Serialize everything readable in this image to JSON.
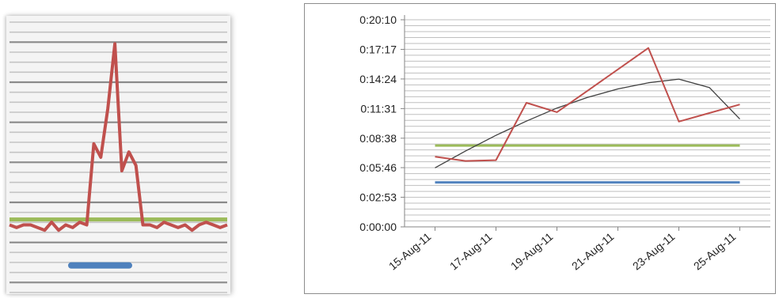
{
  "colors": {
    "actual": "#c0504d",
    "trend": "#404040",
    "upper_limit": "#9bbb59",
    "lower_limit": "#4f81bd",
    "grid": "#bfbfbf"
  },
  "chart_data": [
    {
      "type": "line",
      "title": "",
      "xlabel": "",
      "ylabel": "",
      "grid": true,
      "legend": "none",
      "series": [
        {
          "color": "#c0504d",
          "values": [
            0.25,
            0.24,
            0.25,
            0.25,
            0.24,
            0.23,
            0.26,
            0.23,
            0.25,
            0.24,
            0.26,
            0.25,
            0.55,
            0.5,
            0.68,
            0.92,
            0.45,
            0.52,
            0.47,
            0.25,
            0.25,
            0.24,
            0.26,
            0.25,
            0.24,
            0.25,
            0.23,
            0.25,
            0.26,
            0.25,
            0.24,
            0.25
          ]
        },
        {
          "color": "#9bbb59",
          "values": [
            0.27,
            0.27
          ]
        },
        {
          "color": "#4f81bd",
          "values": [
            0.1,
            0.1
          ]
        }
      ]
    },
    {
      "type": "line",
      "title": "",
      "xlabel": "",
      "ylabel": "",
      "grid": true,
      "legend": "none",
      "y_ticks": [
        "0:00:00",
        "0:02:53",
        "0:05:46",
        "0:08:38",
        "0:11:31",
        "0:14:24",
        "0:17:17",
        "0:20:10"
      ],
      "ylim": [
        "0:00:00",
        "0:20:10"
      ],
      "x_ticks": [
        "15-Aug-11",
        "17-Aug-11",
        "19-Aug-11",
        "21-Aug-11",
        "23-Aug-11",
        "25-Aug-11"
      ],
      "xlim": [
        "14-Aug-11",
        "26-Aug-11"
      ],
      "series": [
        {
          "color": "#c0504d",
          "x": [
            "15-Aug-11",
            "16-Aug-11",
            "17-Aug-11",
            "18-Aug-11",
            "19-Aug-11",
            "20-Aug-11",
            "21-Aug-11",
            "22-Aug-11",
            "23-Aug-11",
            "24-Aug-11",
            "25-Aug-11"
          ],
          "y": [
            "0:06:50",
            "0:06:25",
            "0:06:30",
            "0:12:05",
            "0:11:10",
            "0:13:15",
            "0:15:20",
            "0:17:25",
            "0:10:15",
            "0:11:05",
            "0:11:55"
          ]
        },
        {
          "color": "#404040",
          "x": [
            "15-Aug-11",
            "16-Aug-11",
            "17-Aug-11",
            "18-Aug-11",
            "19-Aug-11",
            "20-Aug-11",
            "21-Aug-11",
            "22-Aug-11",
            "23-Aug-11",
            "24-Aug-11",
            "25-Aug-11"
          ],
          "y": [
            "0:05:45",
            "0:07:23",
            "0:08:55",
            "0:10:18",
            "0:11:34",
            "0:12:36",
            "0:13:26",
            "0:14:02",
            "0:14:23",
            "0:13:34",
            "0:10:30"
          ]
        },
        {
          "color": "#9bbb59",
          "x": [
            "15-Aug-11",
            "25-Aug-11"
          ],
          "y": [
            "0:07:55",
            "0:07:55"
          ]
        },
        {
          "color": "#4f81bd",
          "x": [
            "15-Aug-11",
            "25-Aug-11"
          ],
          "y": [
            "0:04:20",
            "0:04:20"
          ]
        }
      ]
    }
  ]
}
